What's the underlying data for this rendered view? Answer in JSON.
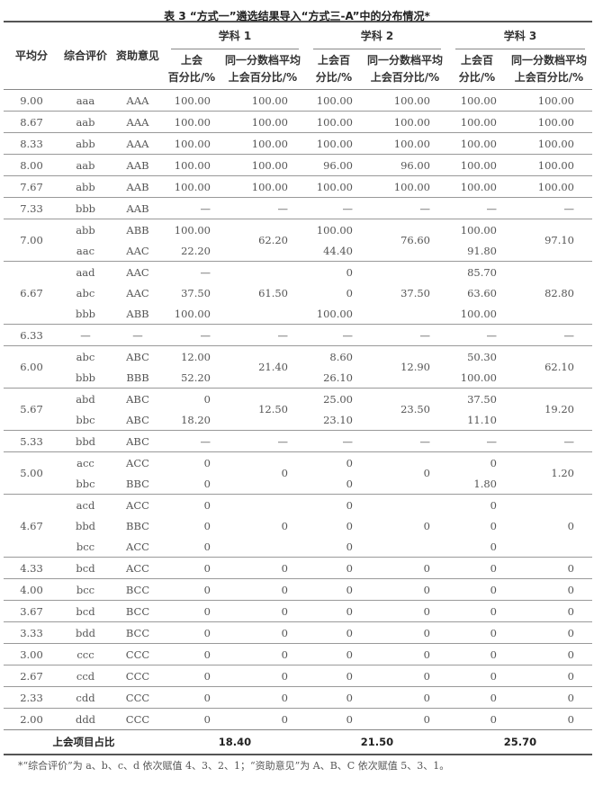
{
  "caption": "表 3  “方式一”遴选结果导入“方式三-A”中的分布情况*",
  "headers": {
    "score": "平均分",
    "eval": "综合评价",
    "opinion": "资助意见",
    "subjects": [
      "学科 1",
      "学科 2",
      "学科 3"
    ],
    "rate_col": [
      "上会百分比/%",
      "上会百分比/%",
      "上会百分比/%"
    ],
    "avg_col": "同一分数档平均上会百分比/%"
  },
  "groups": [
    {
      "score": "9.00",
      "avg": [
        "100.00",
        "100.00",
        "100.00"
      ],
      "rows": [
        [
          "aaa",
          "AAA",
          "100.00",
          "100.00",
          "100.00"
        ]
      ]
    },
    {
      "score": "8.67",
      "avg": [
        "100.00",
        "100.00",
        "100.00"
      ],
      "rows": [
        [
          "aab",
          "AAA",
          "100.00",
          "100.00",
          "100.00"
        ]
      ]
    },
    {
      "score": "8.33",
      "avg": [
        "100.00",
        "100.00",
        "100.00"
      ],
      "rows": [
        [
          "abb",
          "AAA",
          "100.00",
          "100.00",
          "100.00"
        ]
      ]
    },
    {
      "score": "8.00",
      "avg": [
        "100.00",
        "96.00",
        "100.00"
      ],
      "rows": [
        [
          "aab",
          "AAB",
          "100.00",
          "96.00",
          "100.00"
        ]
      ]
    },
    {
      "score": "7.67",
      "avg": [
        "100.00",
        "100.00",
        "100.00"
      ],
      "rows": [
        [
          "abb",
          "AAB",
          "100.00",
          "100.00",
          "100.00"
        ]
      ]
    },
    {
      "score": "7.33",
      "avg": [
        "—",
        "—",
        "—"
      ],
      "rows": [
        [
          "bbb",
          "AAB",
          "—",
          "—",
          "—"
        ]
      ]
    },
    {
      "score": "7.00",
      "avg": [
        "62.20",
        "76.60",
        "97.10"
      ],
      "rows": [
        [
          "abb",
          "ABB",
          "100.00",
          "100.00",
          "100.00"
        ],
        [
          "aac",
          "AAC",
          "22.20",
          "44.40",
          "91.80"
        ]
      ]
    },
    {
      "score": "6.67",
      "avg": [
        "61.50",
        "37.50",
        "82.80"
      ],
      "rows": [
        [
          "aad",
          "AAC",
          "—",
          "0",
          "85.70"
        ],
        [
          "abc",
          "AAC",
          "37.50",
          "0",
          "63.60"
        ],
        [
          "bbb",
          "ABB",
          "100.00",
          "100.00",
          "100.00"
        ]
      ]
    },
    {
      "score": "6.33",
      "avg": [
        "—",
        "—",
        "—"
      ],
      "rows": [
        [
          "—",
          "—",
          "—",
          "—",
          "—"
        ]
      ]
    },
    {
      "score": "6.00",
      "avg": [
        "21.40",
        "12.90",
        "62.10"
      ],
      "rows": [
        [
          "abc",
          "ABC",
          "12.00",
          "8.60",
          "50.30"
        ],
        [
          "bbb",
          "BBB",
          "52.20",
          "26.10",
          "100.00"
        ]
      ]
    },
    {
      "score": "5.67",
      "avg": [
        "12.50",
        "23.50",
        "19.20"
      ],
      "rows": [
        [
          "abd",
          "ABC",
          "0",
          "25.00",
          "37.50"
        ],
        [
          "bbc",
          "ABC",
          "18.20",
          "23.10",
          "11.10"
        ]
      ]
    },
    {
      "score": "5.33",
      "avg": [
        "—",
        "—",
        "—"
      ],
      "rows": [
        [
          "bbd",
          "ABC",
          "—",
          "—",
          "—"
        ]
      ]
    },
    {
      "score": "5.00",
      "avg": [
        "0",
        "0",
        "1.20"
      ],
      "rows": [
        [
          "acc",
          "ACC",
          "0",
          "0",
          "0"
        ],
        [
          "bbc",
          "BBC",
          "0",
          "0",
          "1.80"
        ]
      ]
    },
    {
      "score": "4.67",
      "avg": [
        "0",
        "0",
        "0"
      ],
      "rows": [
        [
          "acd",
          "ACC",
          "0",
          "0",
          "0"
        ],
        [
          "bbd",
          "BBC",
          "0",
          "0",
          "0"
        ],
        [
          "bcc",
          "ACC",
          "0",
          "0",
          "0"
        ]
      ]
    },
    {
      "score": "4.33",
      "avg": [
        "0",
        "0",
        "0"
      ],
      "rows": [
        [
          "bcd",
          "ACC",
          "0",
          "0",
          "0"
        ]
      ]
    },
    {
      "score": "4.00",
      "avg": [
        "0",
        "0",
        "0"
      ],
      "rows": [
        [
          "bcc",
          "BCC",
          "0",
          "0",
          "0"
        ]
      ]
    },
    {
      "score": "3.67",
      "avg": [
        "0",
        "0",
        "0"
      ],
      "rows": [
        [
          "bcd",
          "BCC",
          "0",
          "0",
          "0"
        ]
      ]
    },
    {
      "score": "3.33",
      "avg": [
        "0",
        "0",
        "0"
      ],
      "rows": [
        [
          "bdd",
          "BCC",
          "0",
          "0",
          "0"
        ]
      ]
    },
    {
      "score": "3.00",
      "avg": [
        "0",
        "0",
        "0"
      ],
      "rows": [
        [
          "ccc",
          "CCC",
          "0",
          "0",
          "0"
        ]
      ]
    },
    {
      "score": "2.67",
      "avg": [
        "0",
        "0",
        "0"
      ],
      "rows": [
        [
          "ccd",
          "CCC",
          "0",
          "0",
          "0"
        ]
      ]
    },
    {
      "score": "2.33",
      "avg": [
        "0",
        "0",
        "0"
      ],
      "rows": [
        [
          "cdd",
          "CCC",
          "0",
          "0",
          "0"
        ]
      ]
    },
    {
      "score": "2.00",
      "avg": [
        "0",
        "0",
        "0"
      ],
      "rows": [
        [
          "ddd",
          "CCC",
          "0",
          "0",
          "0"
        ]
      ]
    }
  ],
  "summary": {
    "label": "上会项目占比",
    "values": [
      "18.40",
      "21.50",
      "25.70"
    ]
  },
  "note": "*“综合评价”为 a、b、c、d 依次赋值 4、3、2、1；“资助意见”为 A、B、C 依次赋值 5、3、1。"
}
